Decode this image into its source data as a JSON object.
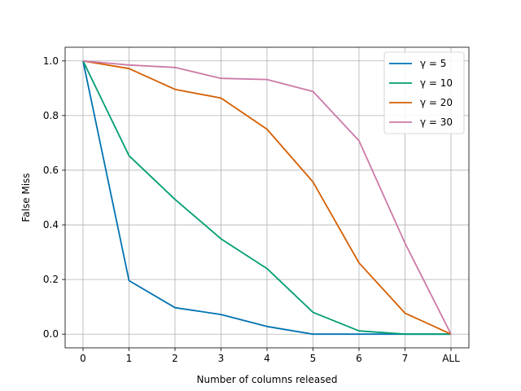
{
  "chart_data": {
    "type": "line",
    "xlabel": "Number of columns released",
    "ylabel": "False Miss",
    "categories": [
      "0",
      "1",
      "2",
      "3",
      "4",
      "5",
      "6",
      "7",
      "ALL"
    ],
    "ylim": [
      -0.05,
      1.05
    ],
    "yticks": [
      "0.0",
      "0.2",
      "0.4",
      "0.6",
      "0.8",
      "1.0"
    ],
    "grid": true,
    "legend_position": "top-right",
    "series": [
      {
        "name": "γ = 5",
        "color": "#0072b2",
        "values": [
          1.0,
          0.196,
          0.097,
          0.072,
          0.028,
          0.0,
          0.0,
          0.0,
          0.0
        ]
      },
      {
        "name": "γ = 10",
        "color": "#009e73",
        "values": [
          1.0,
          0.653,
          0.493,
          0.349,
          0.24,
          0.08,
          0.012,
          0.0,
          0.0
        ]
      },
      {
        "name": "γ = 20",
        "color": "#d55e00",
        "values": [
          1.0,
          0.972,
          0.896,
          0.864,
          0.75,
          0.557,
          0.261,
          0.077,
          0.0
        ]
      },
      {
        "name": "γ = 30",
        "color": "#cc79a7",
        "values": [
          1.0,
          0.985,
          0.976,
          0.936,
          0.932,
          0.888,
          0.708,
          0.333,
          0.0
        ]
      }
    ]
  }
}
